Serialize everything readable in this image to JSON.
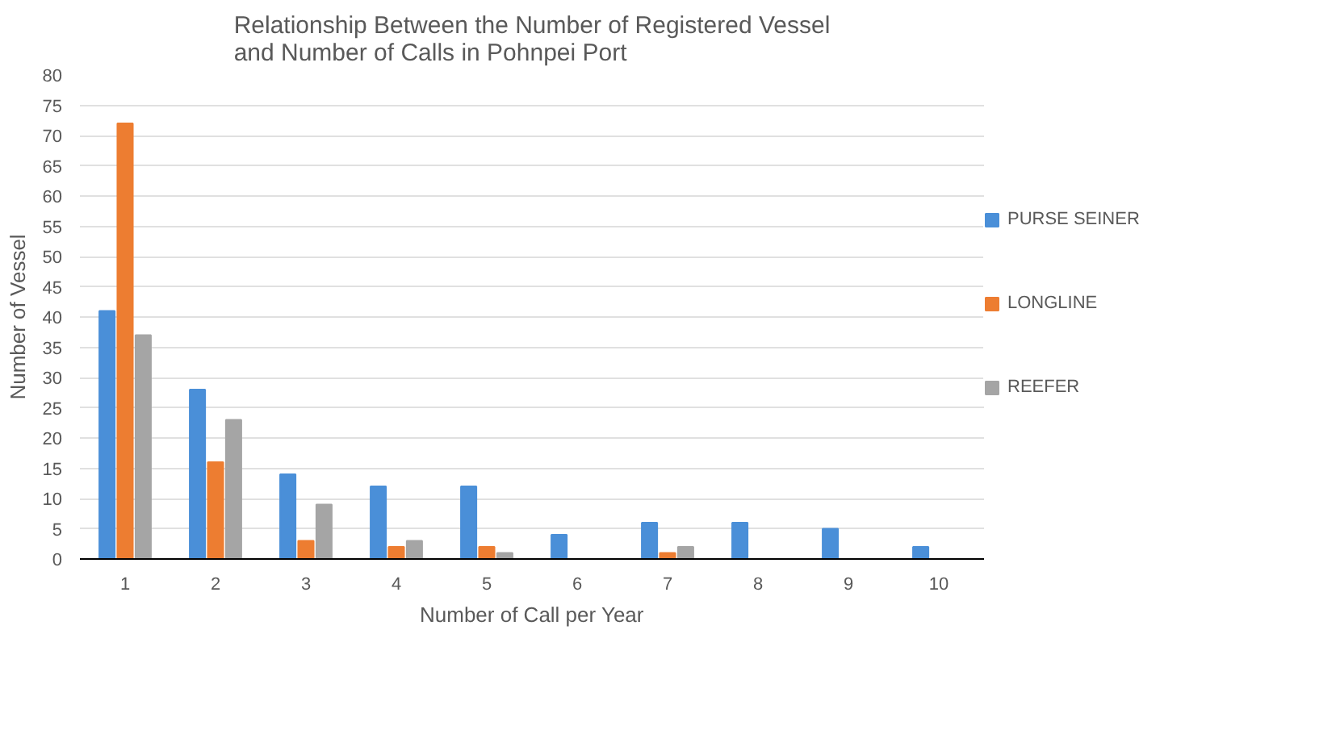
{
  "chart_data": {
    "type": "bar",
    "title": "Relationship Between the Number of Registered Vessel\nand Number of Calls in Pohnpei Port",
    "xlabel": "Number of Call per Year",
    "ylabel": "Number of Vessel",
    "categories": [
      "1",
      "2",
      "3",
      "4",
      "5",
      "6",
      "7",
      "8",
      "9",
      "10"
    ],
    "series": [
      {
        "name": "PURSE SEINER",
        "color": "#4a8fd8",
        "values": [
          41,
          28,
          14,
          12,
          12,
          4,
          6,
          6,
          5,
          2
        ]
      },
      {
        "name": "LONGLINE",
        "color": "#ed7d31",
        "values": [
          72,
          16,
          3,
          2,
          2,
          0,
          1,
          0,
          0,
          0
        ]
      },
      {
        "name": "REEFER",
        "color": "#a5a5a5",
        "values": [
          37,
          23,
          9,
          3,
          1,
          0,
          2,
          0,
          0,
          0
        ]
      }
    ],
    "ylim": [
      0,
      80
    ],
    "yticks": [
      0,
      5,
      10,
      15,
      20,
      25,
      30,
      35,
      40,
      45,
      50,
      55,
      60,
      65,
      70,
      75,
      80
    ],
    "grid": "y",
    "legend": "right"
  }
}
